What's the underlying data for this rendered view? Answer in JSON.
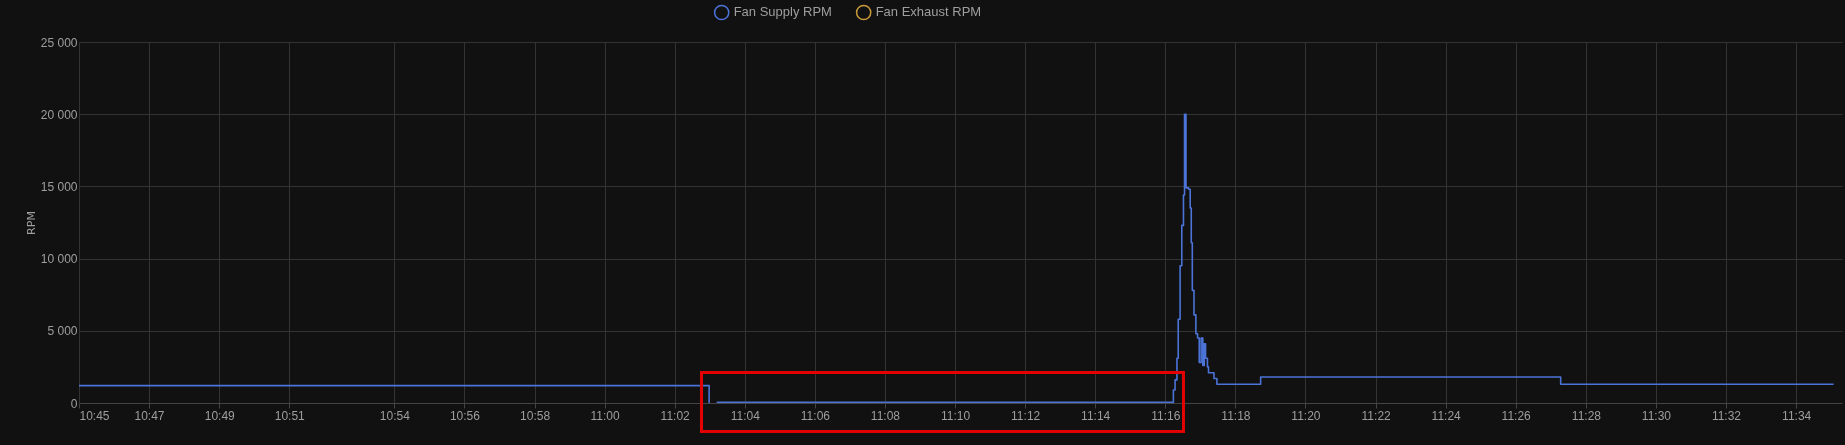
{
  "chart_data": {
    "type": "step",
    "ylabel": "RPM",
    "x": [
      10.75,
      11.0497,
      11.052,
      11.0533,
      11.2697,
      11.2705,
      11.2713,
      11.2722,
      11.2728,
      11.2737,
      11.2745,
      11.2753,
      11.2758,
      11.2765,
      11.2777,
      11.2785,
      11.279,
      11.2795,
      11.2803,
      11.2812,
      11.282,
      11.2828,
      11.2837,
      11.2845,
      11.2852,
      11.2858,
      11.2867,
      11.2872,
      11.2898,
      11.2912,
      11.312,
      11.4547,
      11.5845
    ],
    "series": [
      {
        "name": "Fan Supply RPM",
        "color": "#4b73d8",
        "values": [
          1200,
          0,
          null,
          50,
          50,
          900,
          1600,
          3100,
          5800,
          9500,
          12300,
          14400,
          20000,
          14900,
          14800,
          13500,
          11100,
          7800,
          6100,
          4800,
          4500,
          2800,
          4500,
          2600,
          4100,
          3100,
          2500,
          2100,
          1700,
          1300,
          1800,
          1300,
          1300
        ]
      },
      {
        "name": "Fan Exhaust RPM",
        "color": "#c99a3c",
        "values": [
          null,
          null,
          null,
          null,
          null,
          null,
          null,
          null,
          null,
          null,
          null,
          null,
          null,
          null,
          null,
          null,
          null,
          null,
          null,
          null,
          null,
          null,
          null,
          null,
          null,
          null,
          null,
          null,
          null,
          null,
          null,
          null,
          null
        ]
      }
    ],
    "xlim": [
      10.75,
      11.5885
    ],
    "xticks": [
      {
        "value": 10.75,
        "label": "10:45"
      },
      {
        "value": 10.7833,
        "label": "10:47"
      },
      {
        "value": 10.8167,
        "label": "10:49"
      },
      {
        "value": 10.85,
        "label": "10:51"
      },
      {
        "value": 10.9,
        "label": "10:54"
      },
      {
        "value": 10.9333,
        "label": "10:56"
      },
      {
        "value": 10.9667,
        "label": "10:58"
      },
      {
        "value": 11,
        "label": "11:00"
      },
      {
        "value": 11.0333,
        "label": "11:02"
      },
      {
        "value": 11.0667,
        "label": "11:04"
      },
      {
        "value": 11.1,
        "label": "11:06"
      },
      {
        "value": 11.1333,
        "label": "11:08"
      },
      {
        "value": 11.1667,
        "label": "11:10"
      },
      {
        "value": 11.2,
        "label": "11:12"
      },
      {
        "value": 11.2333,
        "label": "11:14"
      },
      {
        "value": 11.2667,
        "label": "11:16"
      },
      {
        "value": 11.3,
        "label": "11:18"
      },
      {
        "value": 11.3333,
        "label": "11:20"
      },
      {
        "value": 11.3667,
        "label": "11:22"
      },
      {
        "value": 11.4,
        "label": "11:24"
      },
      {
        "value": 11.4333,
        "label": "11:26"
      },
      {
        "value": 11.4667,
        "label": "11:28"
      },
      {
        "value": 11.5,
        "label": "11:30"
      },
      {
        "value": 11.5333,
        "label": "11:32"
      },
      {
        "value": 11.5667,
        "label": "11:34"
      }
    ],
    "ylim": [
      0,
      25000
    ],
    "yticks": [
      0,
      {
        "value": 5000,
        "label": "5 000"
      },
      {
        "value": 10000,
        "label": "10 000"
      },
      {
        "value": 15000,
        "label": "15 000"
      },
      {
        "value": 20000,
        "label": "20 000"
      },
      {
        "value": 25000,
        "label": "25 000"
      }
    ],
    "grid": true,
    "legend": "top",
    "marker": "none",
    "line_style": "solid"
  }
}
